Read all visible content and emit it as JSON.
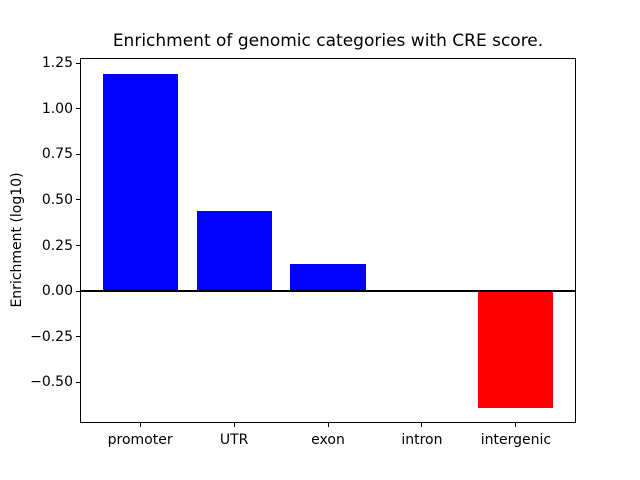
{
  "chart_data": {
    "type": "bar",
    "title": "Enrichment of genomic categories with CRE score.",
    "xlabel": "",
    "ylabel": "Enrichment (log10)",
    "categories": [
      "promoter",
      "UTR",
      "exon",
      "intron",
      "intergenic"
    ],
    "values": [
      1.19,
      0.44,
      0.15,
      0.0,
      -0.64
    ],
    "bar_colors": [
      "#0000ff",
      "#0000ff",
      "#0000ff",
      "#0000ff",
      "#ff0000"
    ],
    "positive_color": "#0000ff",
    "negative_color": "#ff0000",
    "ylim": [
      -0.72,
      1.28
    ],
    "xlim": [
      -0.64,
      4.64
    ],
    "bar_width": 0.8,
    "yticks": [
      -0.5,
      -0.25,
      0.0,
      0.25,
      0.5,
      0.75,
      1.0,
      1.25
    ],
    "ytick_labels": [
      "−0.50",
      "−0.25",
      "0.00",
      "0.25",
      "0.50",
      "0.75",
      "1.00",
      "1.25"
    ],
    "grid": false,
    "zero_line": true,
    "legend": "none",
    "background_color": "#ffffff",
    "axis_color": "#000000"
  }
}
